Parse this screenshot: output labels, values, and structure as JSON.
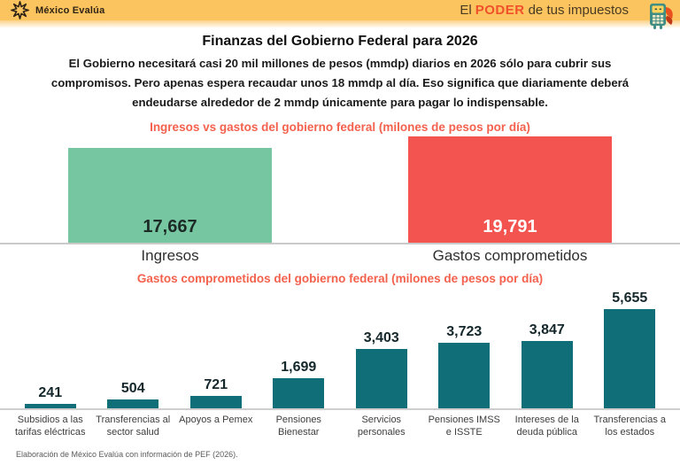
{
  "header": {
    "brand": "México Evalúa",
    "slogan_prefix": "El",
    "slogan_highlight": "PODER",
    "slogan_suffix": "de tus impuestos"
  },
  "title": "Finanzas del Gobierno Federal para 2026",
  "intro": "El Gobierno necesitará casi 20 mil millones de pesos (mmdp) diarios en 2026 sólo para cubrir sus compromisos. Pero apenas espera recaudar unos 18 mmdp al día. Eso significa que diariamente deberá endeudarse alrededor de 2 mmdp únicamente para pagar lo indispensable.",
  "footer": "Elaboración de México Evalúa con información de PEF (2026).",
  "colors": {
    "header_bg": "#fcc45f",
    "accent_orange": "#f0512b",
    "subtitle_coral": "#f4614d",
    "income_green": "#77c6a2",
    "expense_red": "#f4544f",
    "teal_bar": "#0f6e78"
  },
  "chart_data": [
    {
      "type": "bar",
      "title": "Ingresos vs gastos del gobierno federal (milones de pesos por día)",
      "categories": [
        "Ingresos",
        "Gastos comprometidos"
      ],
      "values": [
        17667,
        19791
      ],
      "data_labels": [
        "17,667",
        "19,791"
      ],
      "bar_colors": [
        "#77c6a2",
        "#f4544f"
      ],
      "label_colors": [
        "#1c2b26",
        "#ffffff"
      ],
      "xlabel": "",
      "ylabel": "",
      "ylim": [
        0,
        19791
      ],
      "grid": false,
      "legend": "none"
    },
    {
      "type": "bar",
      "title": "Gastos comprometidos del gobierno federal (milones de pesos por día)",
      "categories": [
        "Subsidios a las tarifas eléctricas",
        "Transferencias al sector salud",
        "Apoyos a Pemex",
        "Pensiones Bienestar",
        "Servicios personales",
        "Pensiones IMSS e ISSTE",
        "Intereses de la deuda pública",
        "Transferencias a los estados"
      ],
      "values": [
        241,
        504,
        721,
        1699,
        3403,
        3723,
        3847,
        5655
      ],
      "data_labels": [
        "241",
        "504",
        "721",
        "1,699",
        "3,403",
        "3,723",
        "3,847",
        "5,655"
      ],
      "bar_color": "#0f6e78",
      "xlabel": "",
      "ylabel": "",
      "ylim": [
        0,
        5655
      ],
      "grid": false,
      "legend": "none"
    }
  ]
}
